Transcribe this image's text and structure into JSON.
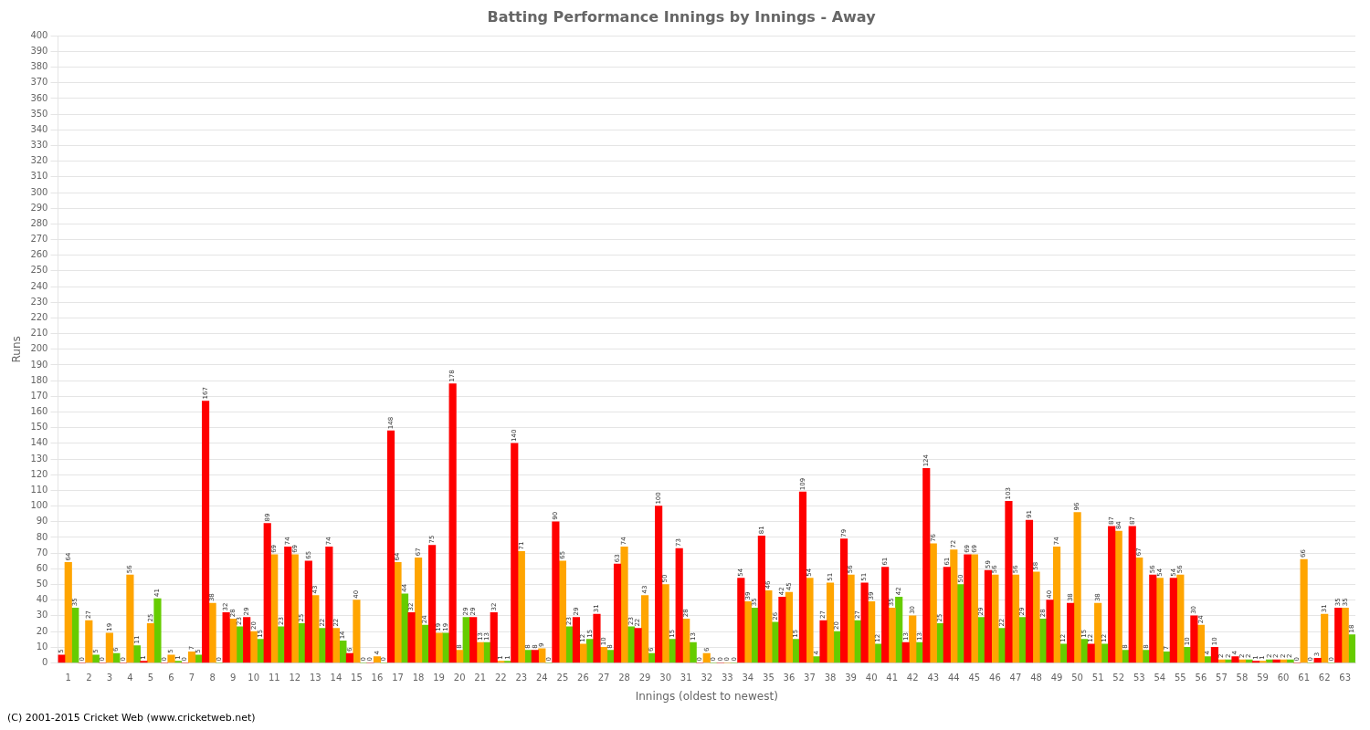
{
  "chart_data": {
    "type": "bar",
    "title": "Batting Performance Innings by Innings - Away",
    "xlabel": "Innings (oldest to newest)",
    "ylabel": "Runs",
    "annotations": [
      "(C) 2001-2015 Cricket Web (www.cricketweb.net)"
    ],
    "categories": [
      "1",
      "2",
      "3",
      "4",
      "5",
      "6",
      "7",
      "8",
      "9",
      "10",
      "11",
      "12",
      "13",
      "14",
      "15",
      "16",
      "17",
      "18",
      "19",
      "20",
      "21",
      "22",
      "23",
      "24",
      "25",
      "26",
      "27",
      "28",
      "29",
      "30",
      "31",
      "32",
      "33",
      "34",
      "35",
      "36",
      "37",
      "38",
      "39",
      "40",
      "41",
      "42",
      "43",
      "44",
      "45",
      "46",
      "47",
      "48",
      "49",
      "50",
      "51",
      "52",
      "53",
      "54",
      "55",
      "56",
      "57",
      "58",
      "59",
      "60",
      "61",
      "62",
      "63"
    ],
    "series": [
      {
        "color": "#ff0000",
        "values": [
          5,
          0,
          0,
          0,
          1,
          0,
          0,
          167,
          32,
          29,
          89,
          74,
          65,
          74,
          6,
          0,
          148,
          32,
          75,
          178,
          29,
          32,
          140,
          8,
          90,
          29,
          31,
          63,
          22,
          100,
          73,
          0,
          0,
          54,
          81,
          42,
          109,
          27,
          79,
          51,
          61,
          13,
          124,
          61,
          69,
          59,
          103,
          91,
          40,
          38,
          12,
          87,
          87,
          56,
          54,
          30,
          10,
          4,
          1,
          2,
          0,
          3,
          35
        ]
      },
      {
        "color": "#ffa500",
        "values": [
          64,
          27,
          19,
          56,
          25,
          5,
          7,
          38,
          28,
          20,
          69,
          69,
          43,
          22,
          40,
          4,
          64,
          67,
          19,
          8,
          13,
          1,
          71,
          9,
          65,
          12,
          10,
          74,
          43,
          50,
          28,
          6,
          0,
          39,
          46,
          45,
          54,
          51,
          56,
          39,
          35,
          30,
          76,
          72,
          69,
          56,
          56,
          58,
          74,
          96,
          38,
          84,
          67,
          54,
          56,
          24,
          2,
          2,
          1,
          2,
          66,
          31,
          35
        ]
      },
      {
        "color": "#66cc00",
        "values": [
          35,
          5,
          6,
          11,
          41,
          1,
          5,
          0,
          23,
          15,
          23,
          25,
          22,
          14,
          0,
          0,
          44,
          24,
          19,
          29,
          13,
          1,
          8,
          0,
          23,
          15,
          8,
          23,
          6,
          15,
          13,
          0,
          0,
          35,
          26,
          15,
          4,
          20,
          27,
          12,
          42,
          13,
          25,
          50,
          29,
          22,
          29,
          28,
          12,
          15,
          12,
          8,
          8,
          7,
          10,
          4,
          2,
          2,
          2,
          2,
          0,
          0,
          18
        ]
      }
    ],
    "ylim": [
      0,
      400
    ],
    "yticks": [
      0,
      10,
      20,
      30,
      40,
      50,
      60,
      70,
      80,
      90,
      100,
      110,
      120,
      130,
      140,
      150,
      160,
      170,
      180,
      190,
      200,
      210,
      220,
      230,
      240,
      250,
      260,
      270,
      280,
      290,
      300,
      310,
      320,
      330,
      340,
      350,
      360,
      370,
      380,
      390,
      400
    ],
    "grid": true,
    "data_labels": true
  }
}
